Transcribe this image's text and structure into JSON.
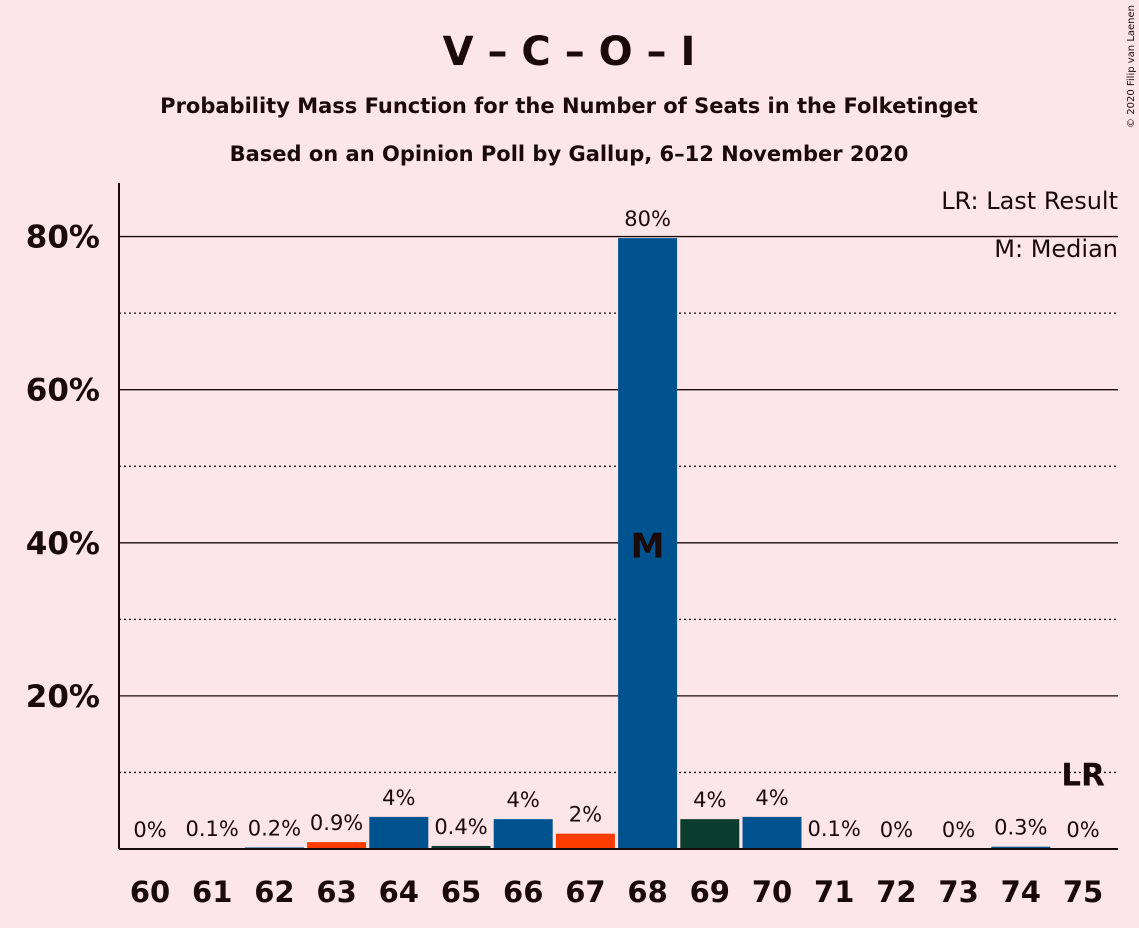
{
  "chart_data": {
    "type": "bar",
    "title": "V – C – O – I",
    "subtitle_line1": "Probability Mass Function for the Number of Seats in the Folketinget",
    "subtitle_line2": "Based on an Opinion Poll by Gallup, 6–12 November 2020",
    "copyright": "© 2020 Filip van Laenen",
    "categories": [
      "60",
      "61",
      "62",
      "63",
      "64",
      "65",
      "66",
      "67",
      "68",
      "69",
      "70",
      "71",
      "72",
      "73",
      "74",
      "75"
    ],
    "values": [
      0,
      0.1,
      0.2,
      0.9,
      4.2,
      0.4,
      3.9,
      2.0,
      79.8,
      3.9,
      4.2,
      0.1,
      0,
      0,
      0.3,
      0
    ],
    "value_labels": [
      "0%",
      "0.1%",
      "0.2%",
      "0.9%",
      "4%",
      "0.4%",
      "4%",
      "2%",
      "80%",
      "4%",
      "4%",
      "0.1%",
      "0%",
      "0%",
      "0.3%",
      "0%"
    ],
    "bar_colors": [
      "#00538f",
      "#00538f",
      "#00538f",
      "#ff3c00",
      "#00538f",
      "#0b3d2e",
      "#00538f",
      "#ff3c00",
      "#00538f",
      "#0b3d2e",
      "#00538f",
      "#00538f",
      "#00538f",
      "#00538f",
      "#00538f",
      "#00538f"
    ],
    "ylim": [
      0,
      87
    ],
    "yticks_major": [
      20,
      40,
      60,
      80
    ],
    "ytick_labels": [
      "20%",
      "40%",
      "60%",
      "80%"
    ],
    "yticks_minor": [
      10,
      30,
      50,
      70
    ],
    "median_seat": "68",
    "median_marker": "M",
    "last_result_seat": "75",
    "last_result_marker": "LR",
    "legend": [
      "LR: Last Result",
      "M: Median"
    ],
    "legend_position": "top-right",
    "grid": true,
    "colors": {
      "background": "#fde6e9",
      "text": "#1a0a0a",
      "median_text": "#fde6e9"
    }
  }
}
